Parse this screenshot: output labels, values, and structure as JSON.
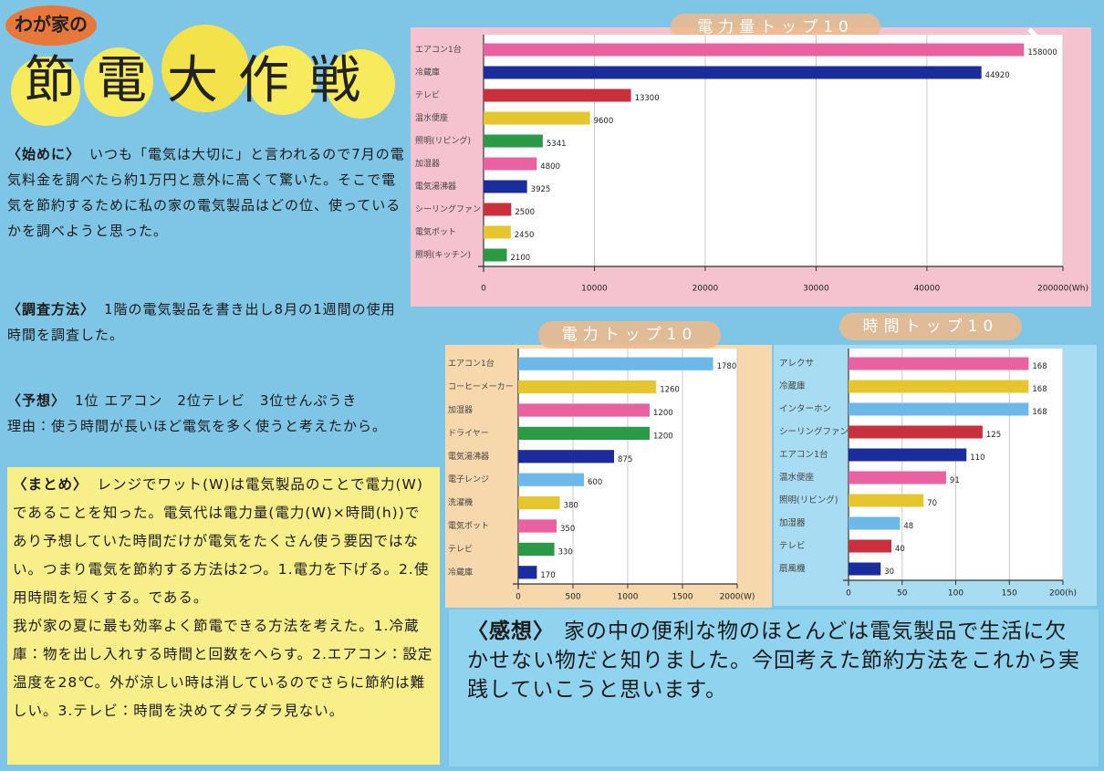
{
  "poster": {
    "title_prefix": "わが家の",
    "title_main": "節電大作戦",
    "intro_heading": "〈始めに〉",
    "intro": "いつも「電気は大切に」と言われるので7月の電気料金を調べたら約1万円と意外に高くて驚いた。そこで電気を節約するために私の家の電気製品はどの位、使っているかを調べようと思った。",
    "method_heading": "〈調査方法〉",
    "method": "1階の電気製品を書き出し8月の1週間の使用時間を調査した。",
    "prediction_heading": "〈予想〉",
    "prediction": "1位 エアコン　2位テレビ　3位せんぷうき",
    "reason": "理由：使う時間が長いほど電気を多く使うと考えたから。",
    "summary_heading": "〈まとめ〉",
    "summary": "レンジでワット(W)は電気製品のことで電力(W)であることを知った。電気代は電力量(電力(W)×時間(h))であり予想していた時間だけが電気をたくさん使う要因ではない。つまり電気を節約する方法は2つ。1.電力を下げる。2.使用時間を短くする。である。",
    "summary_plan": "我が家の夏に最も効率よく節電できる方法を考えた。1.冷蔵庫：物を出し入れする時間と回数をへらす。2.エアコン：設定温度を28℃。外が涼しい時は消しているのでさらに節約は難しい。3.テレビ：時間を決めてダラダラ見ない。",
    "impression_heading": "〈感想〉",
    "impression": "家の中の便利な物のほとんどは電気製品で生活に欠かせない物だと知りました。今回考えた節約方法をこれから実践していこうと思います。"
  },
  "chart_data": [
    {
      "type": "hbar",
      "title": "電力量トップ10",
      "categories": [
        "エアコン1台",
        "冷蔵庫",
        "テレビ",
        "温水便座",
        "照明(リビング)",
        "加湿器",
        "電気湯沸器",
        "シーリングファン",
        "電気ポット",
        "照明(キッチン)"
      ],
      "values": [
        158000,
        44920,
        13300,
        9600,
        5341,
        4800,
        3925,
        2500,
        2450,
        2100
      ],
      "colors": [
        "#e9619f",
        "#1b2c9c",
        "#c9303c",
        "#e6c62e",
        "#2b9a46",
        "#e9619f",
        "#1b2c9c",
        "#c9303c",
        "#e6c62e",
        "#2b9a46"
      ],
      "xlim": [
        0,
        200000
      ],
      "xbreak": [
        46000,
        150000
      ],
      "xticks": [
        0,
        10000,
        20000,
        30000,
        40000,
        {
          "value": 200000,
          "label": "200000(Wh)"
        }
      ],
      "grid": true
    },
    {
      "type": "hbar",
      "title": "電力トップ10",
      "categories": [
        "エアコン1台",
        "コーヒーメーカー",
        "加湿器",
        "ドライヤー",
        "電気湯沸器",
        "電子レンジ",
        "洗濯機",
        "電気ポット",
        "テレビ",
        "冷蔵庫"
      ],
      "values": [
        1780,
        1260,
        1200,
        1200,
        875,
        600,
        380,
        350,
        330,
        170
      ],
      "colors": [
        "#6cb8e8",
        "#e6c62e",
        "#e9619f",
        "#2b9a46",
        "#1b2c9c",
        "#6cb8e8",
        "#e6c62e",
        "#e9619f",
        "#2b9a46",
        "#1b2c9c"
      ],
      "xlim": [
        0,
        2000
      ],
      "xticks": [
        0,
        500,
        1000,
        1500,
        {
          "value": 2000,
          "label": "2000(W)"
        }
      ],
      "grid": true
    },
    {
      "type": "hbar",
      "title": "時間トップ10",
      "categories": [
        "アレクサ",
        "冷蔵庫",
        "インターホン",
        "シーリングファン",
        "エアコン1台",
        "温水便座",
        "照明(リビング)",
        "加湿器",
        "テレビ",
        "扇風機"
      ],
      "values": [
        168,
        168,
        168,
        125,
        110,
        91,
        70,
        48,
        40,
        30
      ],
      "colors": [
        "#e9619f",
        "#e6c62e",
        "#6cb8e8",
        "#c9303c",
        "#1b2c9c",
        "#e9619f",
        "#e6c62e",
        "#6cb8e8",
        "#c9303c",
        "#1b2c9c"
      ],
      "xlim": [
        0,
        200
      ],
      "xticks": [
        0,
        50,
        100,
        150,
        {
          "value": 200,
          "label": "200(h)"
        }
      ],
      "grid": true
    }
  ]
}
